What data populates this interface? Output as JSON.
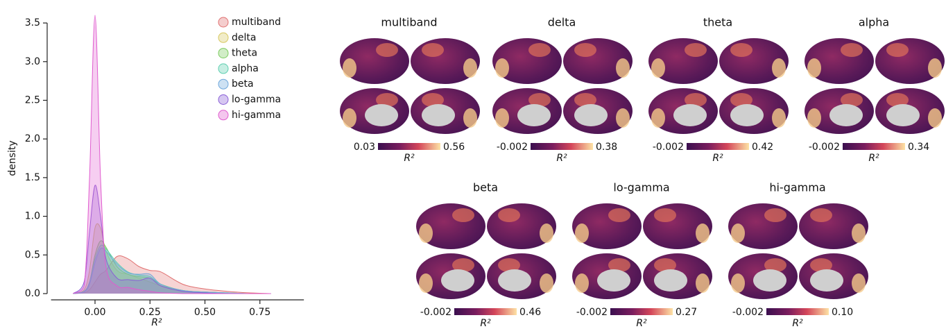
{
  "chart_data": {
    "type": "density",
    "x_label": "R²",
    "y_label": "density",
    "x": [
      -0.1,
      -0.05,
      -0.025,
      0,
      0.025,
      0.05,
      0.1,
      0.15,
      0.2,
      0.25,
      0.3,
      0.4,
      0.5,
      0.6,
      0.7,
      0.8
    ],
    "series": [
      {
        "name": "multiband",
        "color": "#e07070",
        "values": [
          0,
          0.01,
          0.05,
          0.15,
          0.25,
          0.3,
          0.48,
          0.45,
          0.35,
          0.3,
          0.28,
          0.12,
          0.06,
          0.03,
          0.01,
          0
        ]
      },
      {
        "name": "delta",
        "color": "#d8c860",
        "values": [
          0,
          0.05,
          0.3,
          0.85,
          0.85,
          0.55,
          0.3,
          0.25,
          0.2,
          0.15,
          0.1,
          0.04,
          0.02,
          0.01,
          0,
          0
        ]
      },
      {
        "name": "theta",
        "color": "#7ccc5e",
        "values": [
          0,
          0.03,
          0.15,
          0.5,
          0.68,
          0.6,
          0.35,
          0.25,
          0.22,
          0.2,
          0.12,
          0.04,
          0.02,
          0.01,
          0,
          0
        ]
      },
      {
        "name": "alpha",
        "color": "#5ecfb0",
        "values": [
          0,
          0.03,
          0.15,
          0.45,
          0.62,
          0.58,
          0.4,
          0.28,
          0.24,
          0.22,
          0.12,
          0.04,
          0.02,
          0.01,
          0,
          0
        ]
      },
      {
        "name": "beta",
        "color": "#6fa8dc",
        "values": [
          0,
          0.02,
          0.12,
          0.4,
          0.58,
          0.55,
          0.38,
          0.27,
          0.25,
          0.25,
          0.12,
          0.04,
          0.02,
          0.01,
          0,
          0
        ]
      },
      {
        "name": "lo-gamma",
        "color": "#8a5fd6",
        "values": [
          0,
          0.15,
          0.8,
          1.4,
          1.0,
          0.45,
          0.2,
          0.18,
          0.17,
          0.2,
          0.1,
          0.03,
          0.01,
          0,
          0,
          0
        ]
      },
      {
        "name": "hi-gamma",
        "color": "#e05ccf",
        "values": [
          0,
          0.1,
          1.5,
          3.6,
          1.5,
          0.35,
          0.1,
          0.08,
          0.05,
          0.03,
          0.01,
          0,
          0,
          0,
          0,
          0
        ]
      }
    ],
    "xlim": [
      -0.2,
      0.95
    ],
    "xticks": [
      {
        "value": 0,
        "label": "0.00"
      },
      {
        "value": 0.25,
        "label": "0.25"
      },
      {
        "value": 0.5,
        "label": "0.50"
      },
      {
        "value": 0.75,
        "label": "0.75"
      }
    ],
    "ylim": [
      0,
      3.7
    ],
    "yticks": [
      {
        "value": 0,
        "label": "0.0"
      },
      0.5,
      {
        "value": 1,
        "label": "1.0"
      },
      1.5,
      {
        "value": 2,
        "label": "2.0"
      },
      2.5,
      {
        "value": 3,
        "label": "3.0"
      },
      3.5
    ],
    "legend": "upper right"
  },
  "brain_maps": [
    {
      "title": "multiband",
      "min": "0.03",
      "max": "0.56",
      "label": "R²"
    },
    {
      "title": "delta",
      "min": "-0.002",
      "max": "0.38",
      "label": "R²"
    },
    {
      "title": "theta",
      "min": "-0.002",
      "max": "0.42",
      "label": "R²"
    },
    {
      "title": "alpha",
      "min": "-0.002",
      "max": "0.34",
      "label": "R²"
    },
    {
      "title": "beta",
      "min": "-0.002",
      "max": "0.46",
      "label": "R²"
    },
    {
      "title": "lo-gamma",
      "min": "-0.002",
      "max": "0.27",
      "label": "R²"
    },
    {
      "title": "hi-gamma",
      "min": "-0.002",
      "max": "0.10",
      "label": "R²"
    }
  ]
}
